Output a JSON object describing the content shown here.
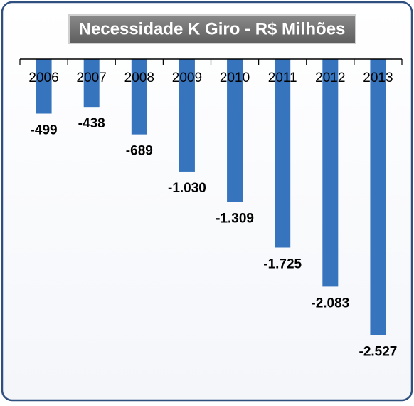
{
  "chart_data": {
    "type": "bar",
    "title": "Necessidade K Giro - R$ Milhões",
    "categories": [
      "2006",
      "2007",
      "2008",
      "2009",
      "2010",
      "2011",
      "2012",
      "2013"
    ],
    "values": [
      -499,
      -438,
      -689,
      -1030,
      -1309,
      -1725,
      -2083,
      -2527
    ],
    "value_labels": [
      "-499",
      "-438",
      "-689",
      "-1.030",
      "-1.309",
      "-1.725",
      "-2.083",
      "-2.527"
    ],
    "color": "#3674bd",
    "ylim": [
      -3000,
      0
    ]
  }
}
